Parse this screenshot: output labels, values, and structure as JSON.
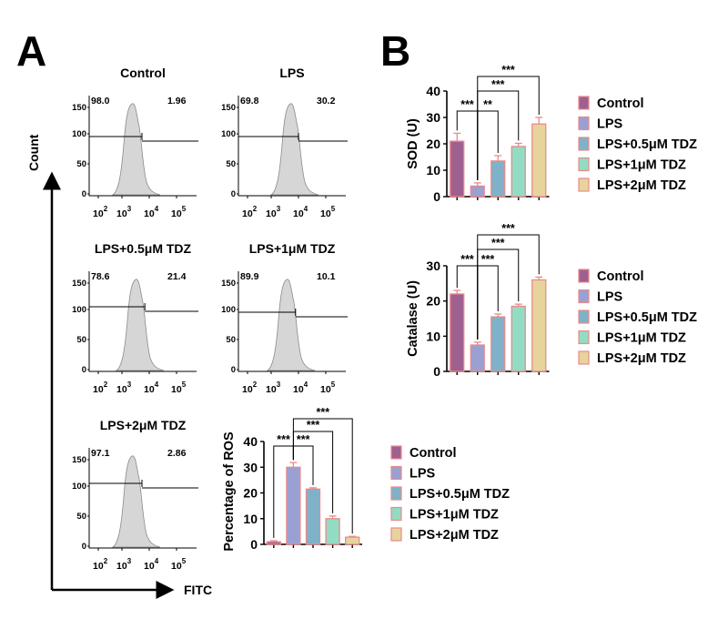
{
  "panel_labels": {
    "a": "A",
    "b": "B"
  },
  "axis_labels": {
    "count": "Count",
    "fitc": "FITC"
  },
  "groups": [
    "Control",
    "LPS",
    "LPS+0.5μM TDZ",
    "LPS+1μM TDZ",
    "LPS+2μM TDZ"
  ],
  "colors": {
    "fills": [
      "#a0608f",
      "#9aa0d2",
      "#7fb2c8",
      "#92dcc3",
      "#e6d49c"
    ],
    "outline": "#ea8a8a",
    "histogram_fill": "#d6d6d6",
    "histogram_stroke": "#8a8a8a"
  },
  "chart_data": [
    {
      "type": "histogram",
      "panel": "A",
      "title": "Control",
      "gate_left": "98.0",
      "gate_right": "1.96",
      "y_ticks": [
        "150",
        "100",
        "50",
        "0"
      ],
      "x_ticks": [
        {
          "base": "10",
          "exp": "2"
        },
        {
          "base": "10",
          "exp": "3"
        },
        {
          "base": "10",
          "exp": "4"
        },
        {
          "base": "10",
          "exp": "5"
        }
      ]
    },
    {
      "type": "histogram",
      "panel": "A",
      "title": "LPS",
      "gate_left": "69.8",
      "gate_right": "30.2",
      "y_ticks": [
        "150",
        "100",
        "50",
        "0"
      ],
      "x_ticks": [
        {
          "base": "10",
          "exp": "2"
        },
        {
          "base": "10",
          "exp": "3"
        },
        {
          "base": "10",
          "exp": "4"
        },
        {
          "base": "10",
          "exp": "5"
        }
      ]
    },
    {
      "type": "histogram",
      "panel": "A",
      "title": "LPS+0.5μM TDZ",
      "gate_left": "78.6",
      "gate_right": "21.4",
      "y_ticks": [
        "150",
        "100",
        "50",
        "0"
      ],
      "x_ticks": [
        {
          "base": "10",
          "exp": "2"
        },
        {
          "base": "10",
          "exp": "3"
        },
        {
          "base": "10",
          "exp": "4"
        },
        {
          "base": "10",
          "exp": "5"
        }
      ]
    },
    {
      "type": "histogram",
      "panel": "A",
      "title": "LPS+1μM TDZ",
      "gate_left": "89.9",
      "gate_right": "10.1",
      "y_ticks": [
        "150",
        "100",
        "50",
        "0"
      ],
      "x_ticks": [
        {
          "base": "10",
          "exp": "2"
        },
        {
          "base": "10",
          "exp": "3"
        },
        {
          "base": "10",
          "exp": "4"
        },
        {
          "base": "10",
          "exp": "5"
        }
      ]
    },
    {
      "type": "histogram",
      "panel": "A",
      "title": "LPS+2μM TDZ",
      "gate_left": "97.1",
      "gate_right": "2.86",
      "y_ticks": [
        "150",
        "100",
        "50",
        "0"
      ],
      "x_ticks": [
        {
          "base": "10",
          "exp": "2"
        },
        {
          "base": "10",
          "exp": "3"
        },
        {
          "base": "10",
          "exp": "4"
        },
        {
          "base": "10",
          "exp": "5"
        }
      ]
    },
    {
      "type": "bar",
      "panel": "A",
      "ylabel": "Percentage of ROS",
      "ylim": [
        0,
        40
      ],
      "yticks": [
        0,
        10,
        20,
        30,
        40
      ],
      "categories": [
        "Control",
        "LPS",
        "LPS+0.5μM TDZ",
        "LPS+1μM TDZ",
        "LPS+2μM TDZ"
      ],
      "values": [
        1.0,
        30.0,
        21.5,
        10.0,
        2.8
      ],
      "errors": [
        0.4,
        1.8,
        0.5,
        1.0,
        0.3
      ],
      "significance": [
        {
          "from": 1,
          "to": 2,
          "label": "***"
        },
        {
          "from": 1,
          "to": 3,
          "label": "***"
        },
        {
          "from": 1,
          "to": 4,
          "label": "***"
        },
        {
          "from": 0,
          "to": 1,
          "label": "***"
        }
      ],
      "legend": [
        "Control",
        "LPS",
        "LPS+0.5μM TDZ",
        "LPS+1μM TDZ",
        "LPS+2μM TDZ"
      ]
    },
    {
      "type": "bar",
      "panel": "B",
      "ylabel": "SOD (U)",
      "ylim": [
        0,
        40
      ],
      "yticks": [
        0,
        10,
        20,
        30,
        40
      ],
      "categories": [
        "Control",
        "LPS",
        "LPS+0.5μM TDZ",
        "LPS+1μM TDZ",
        "LPS+2μM TDZ"
      ],
      "values": [
        21.0,
        4.0,
        13.5,
        19.0,
        27.5
      ],
      "errors": [
        3.0,
        1.2,
        2.0,
        1.2,
        2.5
      ],
      "significance": [
        {
          "from": 1,
          "to": 2,
          "label": "**"
        },
        {
          "from": 1,
          "to": 3,
          "label": "***"
        },
        {
          "from": 1,
          "to": 4,
          "label": "***"
        },
        {
          "from": 0,
          "to": 1,
          "label": "***"
        }
      ],
      "legend": [
        "Control",
        "LPS",
        "LPS+0.5μM TDZ",
        "LPS+1μM TDZ",
        "LPS+2μM TDZ"
      ]
    },
    {
      "type": "bar",
      "panel": "B",
      "ylabel": "Catalase (U)",
      "ylim": [
        0,
        30
      ],
      "yticks": [
        0,
        10,
        20,
        30
      ],
      "categories": [
        "Control",
        "LPS",
        "LPS+0.5μM TDZ",
        "LPS+1μM TDZ",
        "LPS+2μM TDZ"
      ],
      "values": [
        22.0,
        7.5,
        15.5,
        18.5,
        26.0
      ],
      "errors": [
        1.0,
        0.8,
        0.8,
        0.6,
        0.8
      ],
      "significance": [
        {
          "from": 1,
          "to": 2,
          "label": "***"
        },
        {
          "from": 1,
          "to": 3,
          "label": "***"
        },
        {
          "from": 1,
          "to": 4,
          "label": "***"
        },
        {
          "from": 0,
          "to": 1,
          "label": "***"
        }
      ],
      "legend": [
        "Control",
        "LPS",
        "LPS+0.5μM TDZ",
        "LPS+1μM TDZ",
        "LPS+2μM TDZ"
      ]
    }
  ]
}
